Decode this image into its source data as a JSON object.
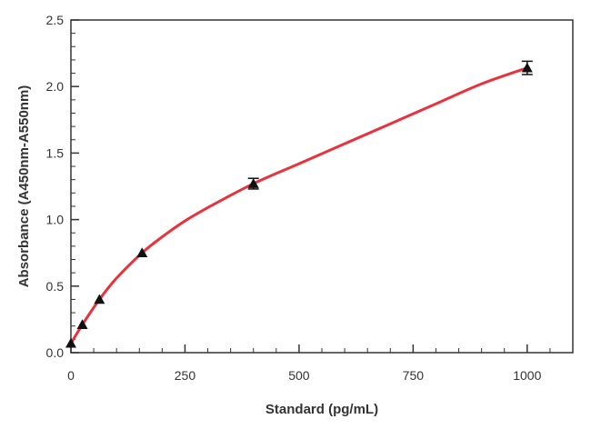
{
  "chart_data": {
    "type": "line",
    "title": "",
    "xlabel": "Standard (pg/mL)",
    "ylabel": "Absorbance (A450nm-A550nm)",
    "xlim": [
      0,
      1100
    ],
    "ylim": [
      0,
      2.5
    ],
    "x_ticks": [
      0,
      250,
      500,
      750,
      1000
    ],
    "x_tick_labels": [
      "0",
      "250",
      "500",
      "750",
      "1000"
    ],
    "y_ticks": [
      0.0,
      0.5,
      1.0,
      1.5,
      2.0,
      2.5
    ],
    "y_tick_labels": [
      "0.0",
      "0.5",
      "1.0",
      "1.5",
      "2.0",
      "2.5"
    ],
    "grid": false,
    "legend": "none",
    "points": {
      "x": [
        0,
        25,
        62.5,
        156,
        400,
        1000
      ],
      "y": [
        0.07,
        0.21,
        0.4,
        0.75,
        1.27,
        2.14
      ],
      "error": [
        0,
        0,
        0,
        0,
        0.04,
        0.05
      ],
      "marker": "triangle",
      "color": "#111111"
    },
    "fit_curve": {
      "x": [
        0,
        25,
        62.5,
        100,
        156,
        200,
        250,
        300,
        400,
        500,
        600,
        700,
        800,
        900,
        1000
      ],
      "y": [
        0.07,
        0.21,
        0.4,
        0.56,
        0.75,
        0.87,
        0.99,
        1.09,
        1.27,
        1.42,
        1.57,
        1.72,
        1.87,
        2.02,
        2.14
      ],
      "color": "#e8323c"
    }
  }
}
